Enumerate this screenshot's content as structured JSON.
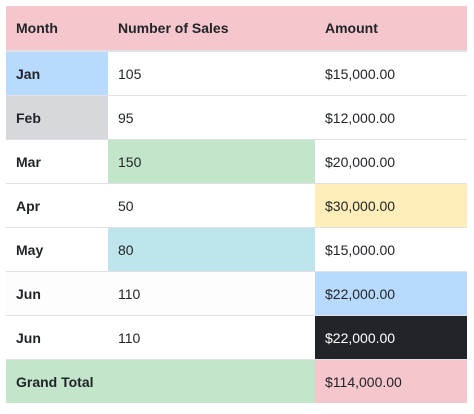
{
  "colors": {
    "danger": "#f5c6cb",
    "primary": "#b8daff",
    "secondary": "#d6d8db",
    "success": "#c3e6cb",
    "warning": "#ffeeba",
    "info": "#bee5eb",
    "light": "#fdfdfe",
    "dark": "#212529",
    "white": "#ffffff"
  },
  "table": {
    "headers": [
      "Month",
      "Number of Sales",
      "Amount"
    ],
    "header_color": "#f5c6cb",
    "rows": [
      {
        "month": "Jan",
        "sales": "105",
        "amount": "$15,000.00",
        "color_month": "#b8daff",
        "color_sales": "#ffffff",
        "color_amount": "#ffffff",
        "text_amount": "#212529"
      },
      {
        "month": "Feb",
        "sales": "95",
        "amount": "$12,000.00",
        "color_month": "#d6d8db",
        "color_sales": "#ffffff",
        "color_amount": "#ffffff",
        "text_amount": "#212529"
      },
      {
        "month": "Mar",
        "sales": "150",
        "amount": "$20,000.00",
        "color_month": "#ffffff",
        "color_sales": "#c3e6cb",
        "color_amount": "#ffffff",
        "text_amount": "#212529"
      },
      {
        "month": "Apr",
        "sales": "50",
        "amount": "$30,000.00",
        "color_month": "#ffffff",
        "color_sales": "#ffffff",
        "color_amount": "#ffeeba",
        "text_amount": "#212529"
      },
      {
        "month": "May",
        "sales": "80",
        "amount": "$15,000.00",
        "color_month": "#ffffff",
        "color_sales": "#bee5eb",
        "color_amount": "#ffffff",
        "text_amount": "#212529"
      },
      {
        "month": "Jun",
        "sales": "110",
        "amount": "$22,000.00",
        "color_month": "#fdfdfe",
        "color_sales": "#fdfdfe",
        "color_amount": "#b8daff",
        "text_amount": "#212529"
      },
      {
        "month": "Jun",
        "sales": "110",
        "amount": "$22,000.00",
        "color_month": "#ffffff",
        "color_sales": "#ffffff",
        "color_amount": "#212529",
        "text_amount": "#ffffff"
      }
    ],
    "total": {
      "label": "Grand Total",
      "amount": "$114,000.00",
      "color_label": "#c3e6cb",
      "color_amount": "#f5c6cb"
    }
  }
}
